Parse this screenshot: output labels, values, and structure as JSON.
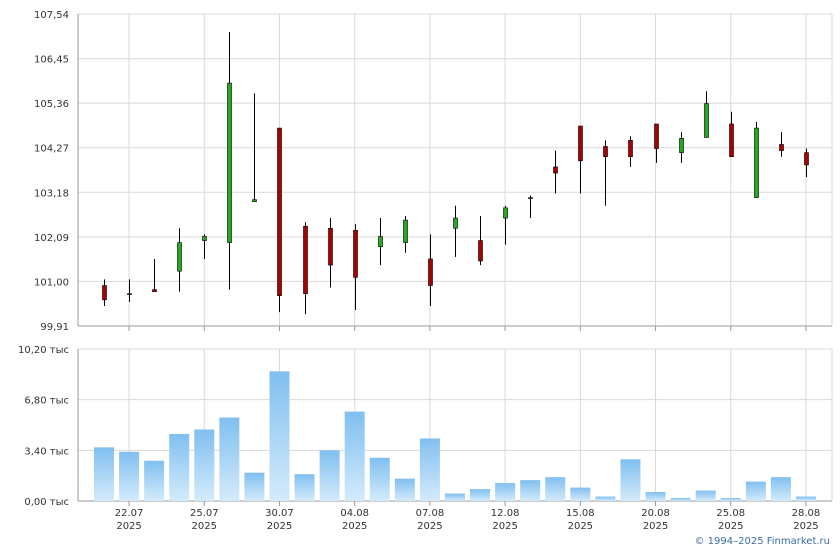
{
  "chart_data": [
    {
      "type": "candlestick",
      "x": [
        "21.07",
        "22.07",
        "23.07",
        "24.07",
        "25.07",
        "28.07",
        "29.07",
        "30.07",
        "31.07",
        "01.08",
        "04.08",
        "05.08",
        "06.08",
        "07.08",
        "08.08",
        "11.08",
        "12.08",
        "13.08",
        "14.08",
        "15.08",
        "18.08",
        "19.08",
        "20.08",
        "21.08",
        "22.08",
        "25.08",
        "26.08",
        "27.08",
        "28.08"
      ],
      "open": [
        100.9,
        100.7,
        100.8,
        101.25,
        102.0,
        101.95,
        102.95,
        104.75,
        102.35,
        102.3,
        102.25,
        101.85,
        101.95,
        101.55,
        102.3,
        102.0,
        102.55,
        103.05,
        103.8,
        104.8,
        104.3,
        104.45,
        104.85,
        104.15,
        104.52,
        104.85,
        103.05,
        104.35,
        104.15
      ],
      "high": [
        101.05,
        101.05,
        101.55,
        102.3,
        102.15,
        107.1,
        105.6,
        104.75,
        102.45,
        102.55,
        102.4,
        102.55,
        102.6,
        102.15,
        102.85,
        102.6,
        102.85,
        103.1,
        104.2,
        104.8,
        104.45,
        104.55,
        104.85,
        104.65,
        105.65,
        105.15,
        104.9,
        104.65,
        104.25
      ],
      "low": [
        100.4,
        100.5,
        100.8,
        100.75,
        101.55,
        100.8,
        103.0,
        100.25,
        100.2,
        100.85,
        100.3,
        101.4,
        101.7,
        100.4,
        101.6,
        101.4,
        101.9,
        102.55,
        103.15,
        103.15,
        102.85,
        103.8,
        103.9,
        103.9,
        104.52,
        104.05,
        103.05,
        104.05,
        103.55
      ],
      "close": [
        100.55,
        100.7,
        100.75,
        101.95,
        102.1,
        105.85,
        103.0,
        100.65,
        100.7,
        101.4,
        101.1,
        102.1,
        102.5,
        100.9,
        102.55,
        101.5,
        102.8,
        103.05,
        103.65,
        103.95,
        104.05,
        104.05,
        104.25,
        104.5,
        105.35,
        104.05,
        104.75,
        104.2,
        103.85
      ],
      "y_ticks": [
        "107,54",
        "106,45",
        "105,36",
        "104,27",
        "103,18",
        "102,09",
        "101,00",
        "99,91"
      ],
      "ylim": [
        99.91,
        107.54
      ]
    },
    {
      "type": "bar",
      "categories": [
        "21.07",
        "22.07",
        "23.07",
        "24.07",
        "25.07",
        "28.07",
        "29.07",
        "30.07",
        "31.07",
        "01.08",
        "04.08",
        "05.08",
        "06.08",
        "07.08",
        "08.08",
        "11.08",
        "12.08",
        "13.08",
        "14.08",
        "15.08",
        "18.08",
        "19.08",
        "20.08",
        "21.08",
        "22.08",
        "25.08",
        "26.08",
        "27.08",
        "28.08"
      ],
      "values": [
        3.6,
        3.3,
        2.7,
        4.5,
        4.8,
        5.6,
        1.9,
        8.7,
        1.8,
        3.4,
        6.0,
        2.9,
        1.5,
        4.2,
        0.5,
        0.8,
        1.2,
        1.4,
        1.6,
        0.9,
        0.3,
        2.8,
        0.6,
        0.2,
        0.7,
        0.2,
        1.3,
        1.6,
        0.3
      ],
      "y_ticks": [
        "10,20 тыс",
        "6,80 тыс",
        "3,40 тыс",
        "0,00 тыс"
      ],
      "ylim": [
        0,
        10.2
      ],
      "x_tick_labels": [
        {
          "date": "22.07",
          "year": "2025"
        },
        {
          "date": "25.07",
          "year": "2025"
        },
        {
          "date": "30.07",
          "year": "2025"
        },
        {
          "date": "04.08",
          "year": "2025"
        },
        {
          "date": "07.08",
          "year": "2025"
        },
        {
          "date": "12.08",
          "year": "2025"
        },
        {
          "date": "15.08",
          "year": "2025"
        },
        {
          "date": "20.08",
          "year": "2025"
        },
        {
          "date": "25.08",
          "year": "2025"
        },
        {
          "date": "28.08",
          "year": "2025"
        }
      ]
    }
  ],
  "credit": "© 1994–2025 Finmarket.ru",
  "colors": {
    "up_candle": "#22aa22",
    "down_candle": "#aa0000",
    "wick": "#000000",
    "grid": "#d9d9d9",
    "axis": "#999999",
    "volume_top": "#80bff0",
    "volume_bottom": "#d4ebfb",
    "credit": "#3a6ea5"
  }
}
